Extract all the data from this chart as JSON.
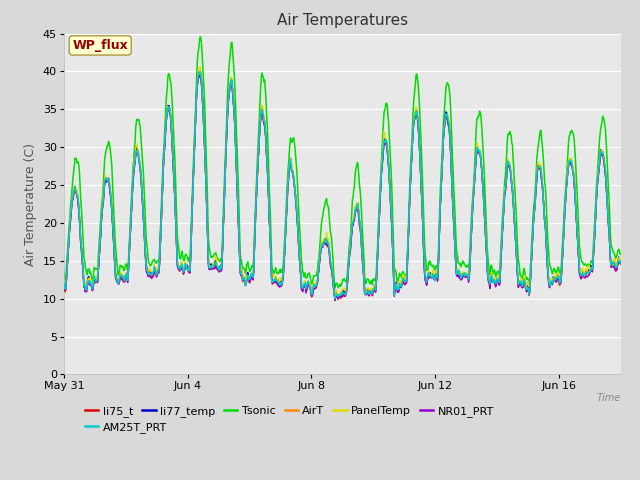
{
  "title": "Air Temperatures",
  "xlabel": "Time",
  "ylabel": "Air Temperature (C)",
  "ylim": [
    0,
    45
  ],
  "yticks": [
    0,
    5,
    10,
    15,
    20,
    25,
    30,
    35,
    40,
    45
  ],
  "x_tick_labels": [
    "May 31",
    "Jun 4",
    "Jun 8",
    "Jun 12",
    "Jun 16"
  ],
  "x_tick_positions": [
    0,
    4,
    8,
    12,
    16
  ],
  "series": [
    {
      "name": "li75_t",
      "color": "#dd0000"
    },
    {
      "name": "li77_temp",
      "color": "#0000cc"
    },
    {
      "name": "Tsonic",
      "color": "#00dd00"
    },
    {
      "name": "AirT",
      "color": "#ff8800"
    },
    {
      "name": "PanelTemp",
      "color": "#dddd00"
    },
    {
      "name": "NR01_PRT",
      "color": "#9900cc"
    },
    {
      "name": "AM25T_PRT",
      "color": "#00cccc"
    }
  ],
  "annotation_text": "WP_flux",
  "annotation_color": "#990000",
  "annotation_bg": "#ffffcc",
  "fig_bg": "#d9d9d9",
  "plot_bg": "#e8e8e8",
  "grid_color": "#ffffff",
  "title_fontsize": 11,
  "axis_label_fontsize": 9,
  "tick_fontsize": 8,
  "legend_fontsize": 8
}
